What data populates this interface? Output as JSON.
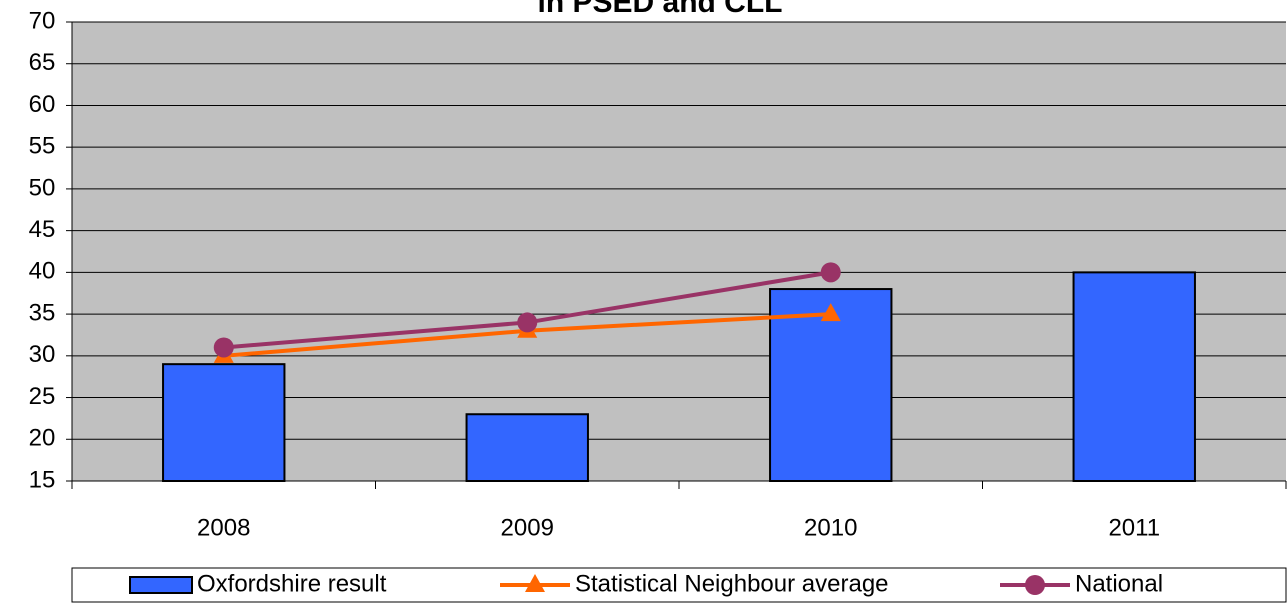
{
  "chart_data": {
    "type": "bar_line",
    "title": "in PSED and CLL",
    "categories": [
      "2008",
      "2009",
      "2010",
      "2011"
    ],
    "series": [
      {
        "name": "Oxfordshire result",
        "type": "bar",
        "color": "#3366ff",
        "values": [
          29,
          23,
          38,
          40
        ]
      },
      {
        "name": "Statistical Neighbour average",
        "type": "line",
        "marker": "triangle",
        "color": "#ff6600",
        "values": [
          30,
          33,
          35,
          null
        ]
      },
      {
        "name": "National",
        "type": "line",
        "marker": "circle",
        "color": "#993366",
        "values": [
          31,
          34,
          40,
          null
        ]
      }
    ],
    "ylim": [
      15,
      70
    ],
    "yticks": [
      15,
      20,
      25,
      30,
      35,
      40,
      45,
      50,
      55,
      60,
      65,
      70
    ],
    "grid": true,
    "legend": "bottom",
    "plot_background": "#c0c0c0"
  }
}
